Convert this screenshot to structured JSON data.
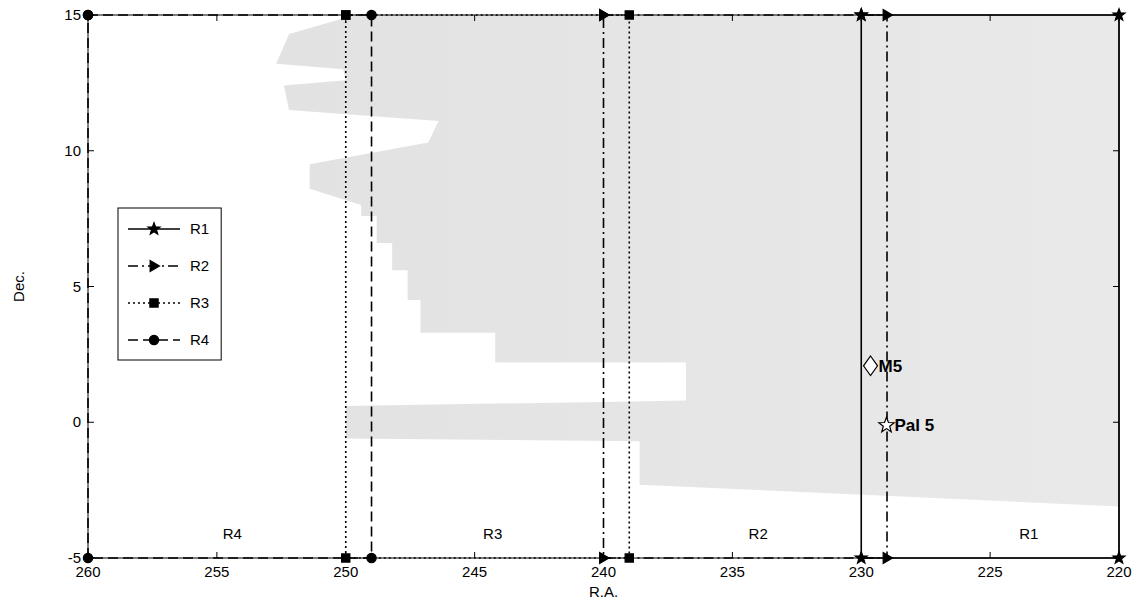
{
  "chart_data": {
    "type": "line",
    "x_label": "R.A.",
    "y_label": "Dec.",
    "xlim": [
      260,
      220
    ],
    "ylim": [
      -5,
      15
    ],
    "xticks": [
      260,
      255,
      250,
      245,
      240,
      235,
      230,
      225,
      220
    ],
    "yticks": [
      -5,
      0,
      5,
      10,
      15
    ],
    "legend": "center left",
    "footprint": {
      "type": "area",
      "color": "#e2e2e2",
      "x": [
        250,
        220,
        220,
        238.6,
        238.6,
        250,
        250,
        240,
        236.8,
        236.8,
        244.2,
        244.2,
        247.1,
        247.1,
        247.6,
        247.6,
        248.2,
        248.2,
        248.8,
        248.8,
        249.4,
        249.4,
        251.4,
        251.4,
        246.8,
        246.4,
        252.2,
        252.4,
        250,
        250.1,
        252.7,
        252.2,
        250
      ],
      "y": [
        15,
        15,
        -3.1,
        -2.3,
        -0.7,
        -0.6,
        0.6,
        0.75,
        0.8,
        2.2,
        2.2,
        3.3,
        3.3,
        4.5,
        4.5,
        5.6,
        5.6,
        6.6,
        6.6,
        7.6,
        7.6,
        8.0,
        8.6,
        9.5,
        10.3,
        11.1,
        11.5,
        12.4,
        12.6,
        13.0,
        13.2,
        14.3,
        14.9
      ]
    },
    "series": [
      {
        "name": "R1",
        "color": "#000000",
        "line_style": "solid",
        "marker": "star",
        "x": [
          230,
          220,
          220,
          230,
          230
        ],
        "values": [
          15,
          15,
          -5,
          -5,
          15
        ]
      },
      {
        "name": "R2",
        "color": "#000000",
        "line_style": "dashdot",
        "marker": "triangle",
        "x": [
          240,
          229,
          229,
          240,
          240
        ],
        "values": [
          15,
          15,
          -5,
          -5,
          15
        ]
      },
      {
        "name": "R3",
        "color": "#000000",
        "line_style": "dotted",
        "marker": "square",
        "x": [
          250,
          239,
          239,
          250,
          250
        ],
        "values": [
          15,
          15,
          -5,
          -5,
          15
        ]
      },
      {
        "name": "R4",
        "color": "#000000",
        "line_style": "dashed",
        "marker": "circle",
        "x": [
          260,
          249,
          249,
          260,
          260
        ],
        "values": [
          15,
          15,
          -5,
          -5,
          15
        ]
      }
    ],
    "annotations": [
      {
        "text": "M5",
        "x": 229.64,
        "y": 2.08,
        "marker": "diamond"
      },
      {
        "text": "Pal 5",
        "x": 229.02,
        "y": -0.11,
        "marker": "star"
      },
      {
        "text": "R4",
        "x": 254.4,
        "y": -4.1
      },
      {
        "text": "R3",
        "x": 244.3,
        "y": -4.1
      },
      {
        "text": "R2",
        "x": 234.0,
        "y": -4.1
      },
      {
        "text": "R1",
        "x": 223.5,
        "y": -4.1
      }
    ]
  }
}
